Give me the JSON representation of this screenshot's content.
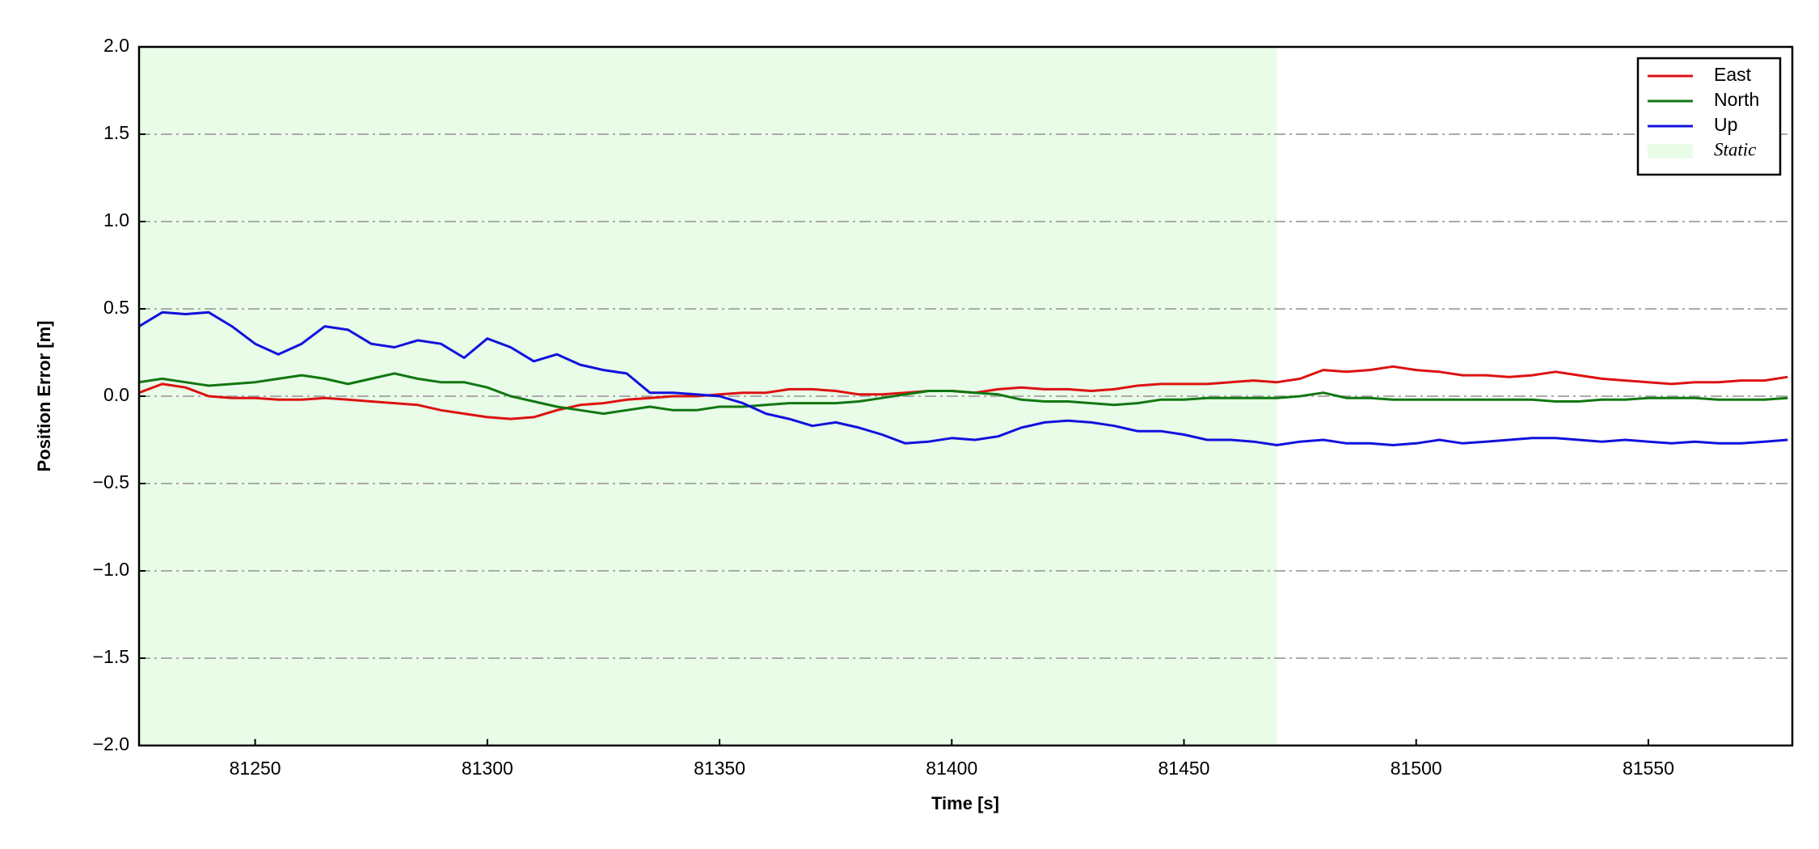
{
  "chart_data": {
    "type": "line",
    "xlabel": "Time [s]",
    "ylabel": "Position Error [m]",
    "x": [
      81225,
      81230,
      81235,
      81240,
      81245,
      81250,
      81255,
      81260,
      81265,
      81270,
      81275,
      81280,
      81285,
      81290,
      81295,
      81300,
      81305,
      81310,
      81315,
      81320,
      81325,
      81330,
      81335,
      81340,
      81345,
      81350,
      81355,
      81360,
      81365,
      81370,
      81375,
      81380,
      81385,
      81390,
      81395,
      81400,
      81405,
      81410,
      81415,
      81420,
      81425,
      81430,
      81435,
      81440,
      81445,
      81450,
      81455,
      81460,
      81465,
      81470,
      81475,
      81480,
      81485,
      81490,
      81495,
      81500,
      81505,
      81510,
      81515,
      81520,
      81525,
      81530,
      81535,
      81540,
      81545,
      81550,
      81555,
      81560,
      81565,
      81570,
      81575,
      81580
    ],
    "series": [
      {
        "name": "East",
        "color": "#dd1111",
        "values": [
          0.02,
          0.07,
          0.05,
          0.0,
          -0.01,
          -0.01,
          -0.02,
          -0.02,
          -0.01,
          -0.02,
          -0.03,
          -0.04,
          -0.05,
          -0.08,
          -0.1,
          -0.12,
          -0.13,
          -0.12,
          -0.08,
          -0.05,
          -0.04,
          -0.02,
          -0.01,
          0.0,
          0.0,
          0.01,
          0.02,
          0.02,
          0.04,
          0.04,
          0.03,
          0.01,
          0.01,
          0.02,
          0.03,
          0.03,
          0.02,
          0.04,
          0.05,
          0.04,
          0.04,
          0.03,
          0.04,
          0.06,
          0.07,
          0.07,
          0.07,
          0.08,
          0.09,
          0.08,
          0.1,
          0.15,
          0.14,
          0.15,
          0.17,
          0.15,
          0.14,
          0.12,
          0.12,
          0.11,
          0.12,
          0.14,
          0.12,
          0.1,
          0.09,
          0.08,
          0.07,
          0.08,
          0.08,
          0.09,
          0.09,
          0.11
        ]
      },
      {
        "name": "North",
        "color": "#117711",
        "values": [
          0.08,
          0.1,
          0.08,
          0.06,
          0.07,
          0.08,
          0.1,
          0.12,
          0.1,
          0.07,
          0.1,
          0.13,
          0.1,
          0.08,
          0.08,
          0.05,
          0.0,
          -0.03,
          -0.06,
          -0.08,
          -0.1,
          -0.08,
          -0.06,
          -0.08,
          -0.08,
          -0.06,
          -0.06,
          -0.05,
          -0.04,
          -0.04,
          -0.04,
          -0.03,
          -0.01,
          0.01,
          0.03,
          0.03,
          0.02,
          0.01,
          -0.02,
          -0.03,
          -0.03,
          -0.04,
          -0.05,
          -0.04,
          -0.02,
          -0.02,
          -0.01,
          -0.01,
          -0.01,
          -0.01,
          0.0,
          0.02,
          -0.01,
          -0.01,
          -0.02,
          -0.02,
          -0.02,
          -0.02,
          -0.02,
          -0.02,
          -0.02,
          -0.03,
          -0.03,
          -0.02,
          -0.02,
          -0.01,
          -0.01,
          -0.01,
          -0.02,
          -0.02,
          -0.02,
          -0.01
        ]
      },
      {
        "name": "Up",
        "color": "#1111dd",
        "values": [
          0.4,
          0.48,
          0.47,
          0.48,
          0.4,
          0.3,
          0.24,
          0.3,
          0.4,
          0.38,
          0.3,
          0.28,
          0.32,
          0.3,
          0.22,
          0.33,
          0.28,
          0.2,
          0.24,
          0.18,
          0.15,
          0.13,
          0.02,
          0.02,
          0.01,
          0.0,
          -0.04,
          -0.1,
          -0.13,
          -0.17,
          -0.15,
          -0.18,
          -0.22,
          -0.27,
          -0.26,
          -0.24,
          -0.25,
          -0.23,
          -0.18,
          -0.15,
          -0.14,
          -0.15,
          -0.17,
          -0.2,
          -0.2,
          -0.22,
          -0.25,
          -0.25,
          -0.26,
          -0.28,
          -0.26,
          -0.25,
          -0.27,
          -0.27,
          -0.28,
          -0.27,
          -0.25,
          -0.27,
          -0.26,
          -0.25,
          -0.24,
          -0.24,
          -0.25,
          -0.26,
          -0.25,
          -0.26,
          -0.27,
          -0.26,
          -0.27,
          -0.27,
          -0.26,
          -0.25
        ]
      }
    ],
    "spans": [
      {
        "name": "Static",
        "start": 81225,
        "end": 81470,
        "color": "#e8fce8"
      }
    ],
    "xlim": [
      81225,
      81581
    ],
    "xticks": [
      81250,
      81300,
      81350,
      81400,
      81450,
      81500,
      81550
    ],
    "ylim": [
      -2,
      2
    ],
    "yticks": [
      {
        "value": -2,
        "label": "−2.0"
      },
      {
        "value": -1.5,
        "label": "−1.5"
      },
      {
        "value": -1,
        "label": "−1.0"
      },
      {
        "value": -0.5,
        "label": "−0.5"
      },
      {
        "value": 0,
        "label": "0.0"
      },
      {
        "value": 0.5,
        "label": "0.5"
      },
      {
        "value": 1,
        "label": "1.0"
      },
      {
        "value": 1.5,
        "label": "1.5"
      },
      {
        "value": 2,
        "label": "2.0"
      }
    ],
    "grid": true,
    "legend": "upper right"
  }
}
